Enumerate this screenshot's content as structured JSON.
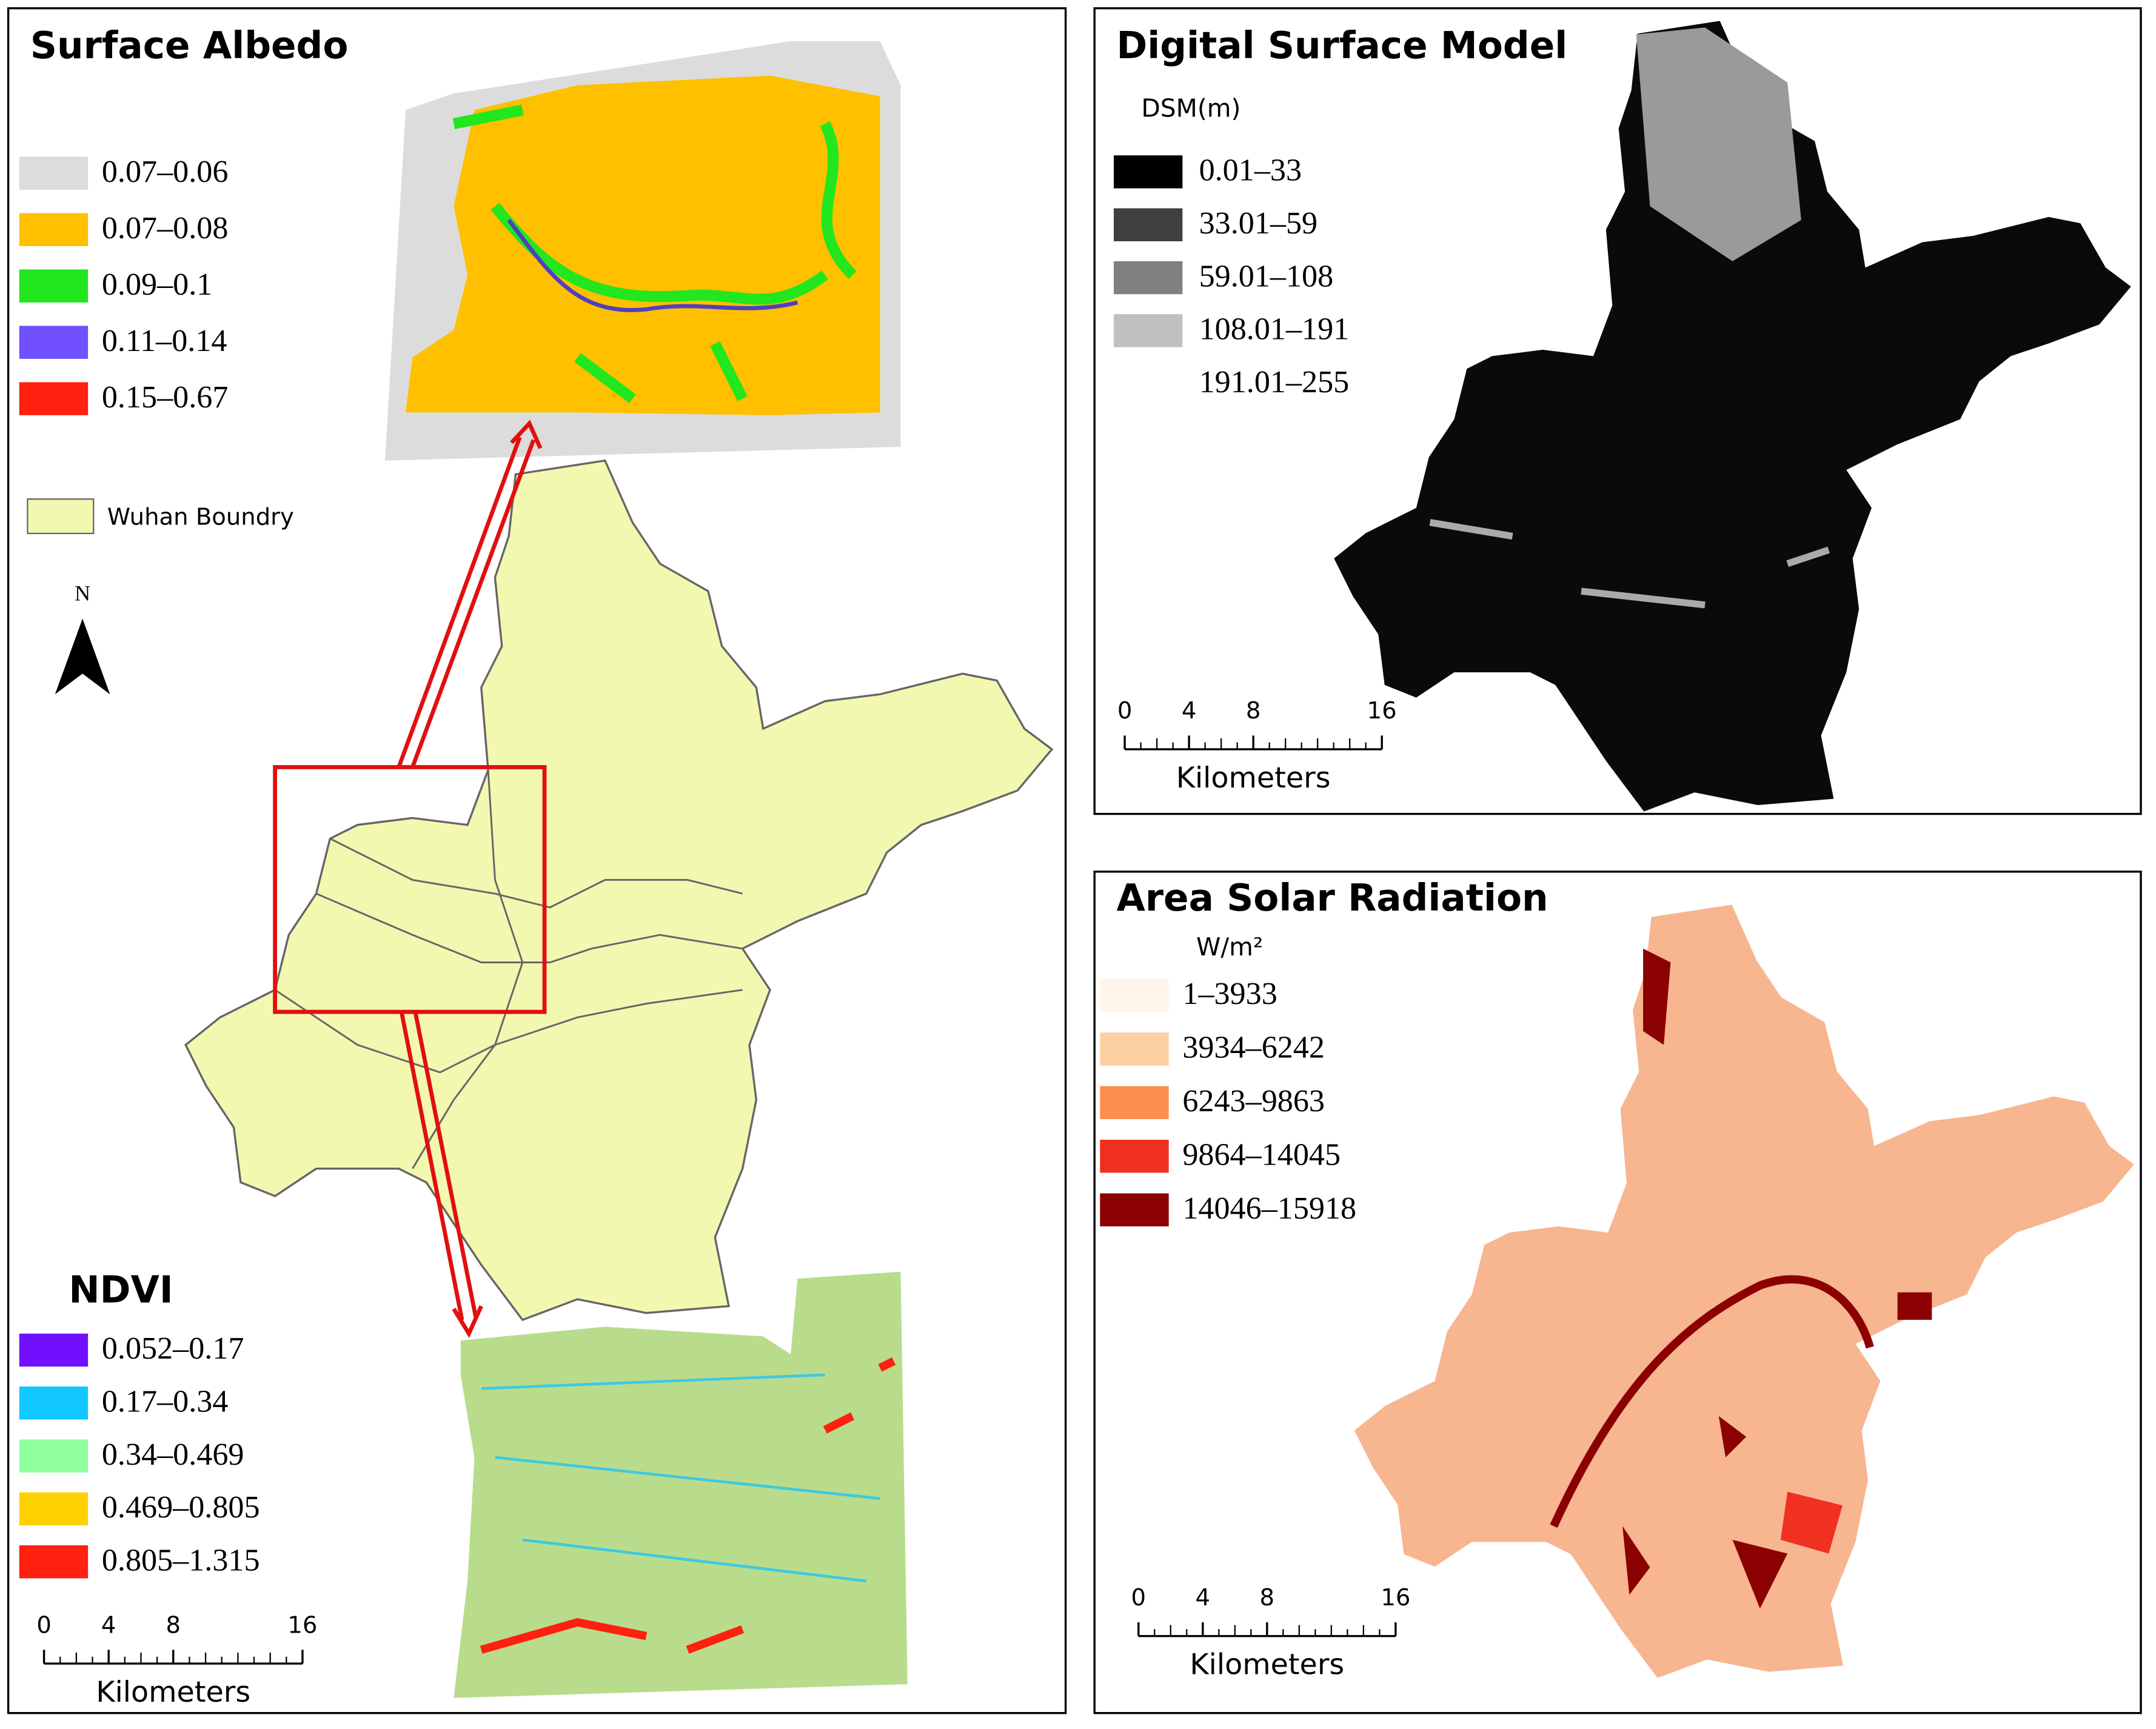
{
  "albedo": {
    "title": "Surface Albedo",
    "legend": [
      {
        "label": "0.07–0.06",
        "color": "#dcdcdc"
      },
      {
        "label": "0.07–0.08",
        "color": "#ffc000"
      },
      {
        "label": "0.09–0.1",
        "color": "#22e61e"
      },
      {
        "label": "0.11–0.14",
        "color": "#7050ff"
      },
      {
        "label": "0.15–0.67",
        "color": "#ff2010"
      }
    ]
  },
  "boundary_legend": {
    "label": "Wuhan Boundry",
    "color": "#f3f8b0"
  },
  "north": "N",
  "ndvi": {
    "title": "NDVI",
    "legend": [
      {
        "label": "0.052–0.17",
        "color": "#7010ff"
      },
      {
        "label": "0.17–0.34",
        "color": "#10c8ff"
      },
      {
        "label": "0.34–0.469",
        "color": "#90ffa0"
      },
      {
        "label": "0.469–0.805",
        "color": "#ffd000"
      },
      {
        "label": "0.805–1.315",
        "color": "#ff2010"
      }
    ],
    "scale": {
      "ticks": [
        0,
        4,
        8,
        16
      ],
      "unit": "Kilometers"
    }
  },
  "dsm": {
    "title": "Digital Surface Model",
    "unit": "DSM(m)",
    "legend": [
      {
        "label": "0.01–33",
        "color": "#000000"
      },
      {
        "label": "33.01–59",
        "color": "#404040"
      },
      {
        "label": "59.01–108",
        "color": "#808080"
      },
      {
        "label": "108.01–191",
        "color": "#c0c0c0"
      },
      {
        "label": "191.01–255",
        "color": "#ffffff"
      }
    ],
    "scale": {
      "ticks": [
        0,
        4,
        8,
        16
      ],
      "unit": "Kilometers"
    }
  },
  "solar": {
    "title": "Area Solar Radiation",
    "unit": "W/m²",
    "legend": [
      {
        "label": "1–3933",
        "color": "#fff5eb"
      },
      {
        "label": "3934–6242",
        "color": "#fdd0a2"
      },
      {
        "label": "6243–9863",
        "color": "#fd8d50"
      },
      {
        "label": "9864–14045",
        "color": "#f03020"
      },
      {
        "label": "14046–15918",
        "color": "#8b0000"
      }
    ],
    "scale": {
      "ticks": [
        0,
        4,
        8,
        16
      ],
      "unit": "Kilometers"
    }
  }
}
